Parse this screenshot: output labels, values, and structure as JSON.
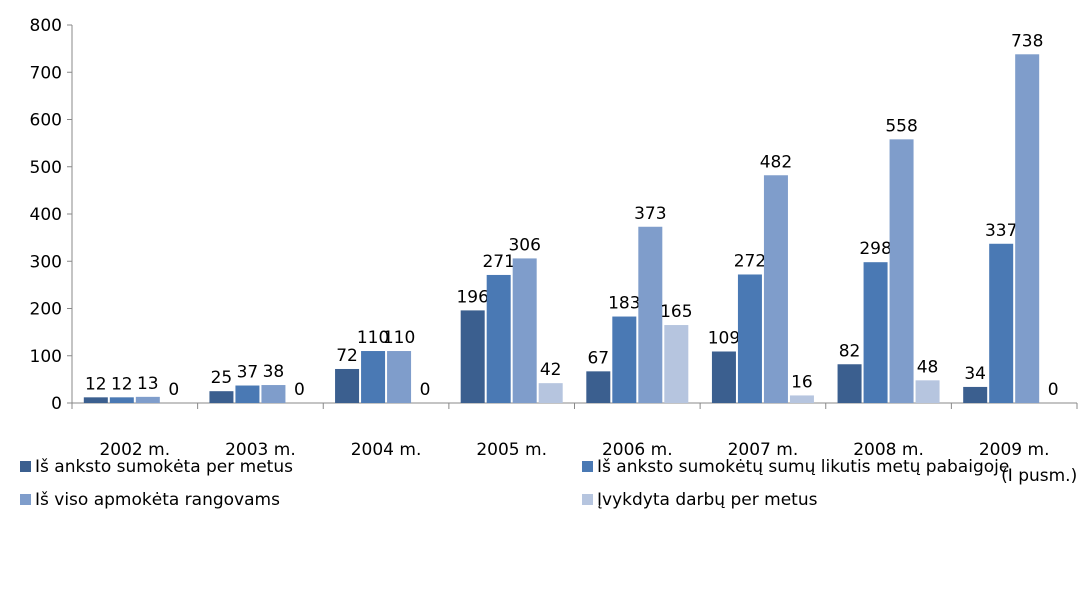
{
  "chart_data": {
    "type": "bar",
    "categories": [
      "2002 m.",
      "2003 m.",
      "2004 m.",
      "2005 m.",
      "2006 m.",
      "2007 m.",
      "2008 m.",
      "2009 m.\n(I pusm.)"
    ],
    "series": [
      {
        "name": "Iš anksto sumokėta per metus",
        "color": "#3b5f8f",
        "values": [
          12,
          25,
          72,
          196,
          67,
          109,
          82,
          34
        ]
      },
      {
        "name": "Iš anksto sumokėtų sumų likutis metų pabaigoje",
        "color": "#4a79b4",
        "values": [
          12,
          37,
          110,
          271,
          183,
          272,
          298,
          337
        ]
      },
      {
        "name": "Iš viso apmokėta rangovams",
        "color": "#7f9dcb",
        "values": [
          13,
          38,
          110,
          306,
          373,
          482,
          558,
          738
        ]
      },
      {
        "name": "Įvykdyta darbų per metus",
        "color": "#b6c5df",
        "values": [
          0,
          0,
          0,
          42,
          165,
          16,
          48,
          0
        ]
      }
    ],
    "ylim": [
      0,
      800
    ],
    "yticks": [
      0,
      100,
      200,
      300,
      400,
      500,
      600,
      700,
      800
    ],
    "grid": false,
    "legend": "bottom"
  }
}
